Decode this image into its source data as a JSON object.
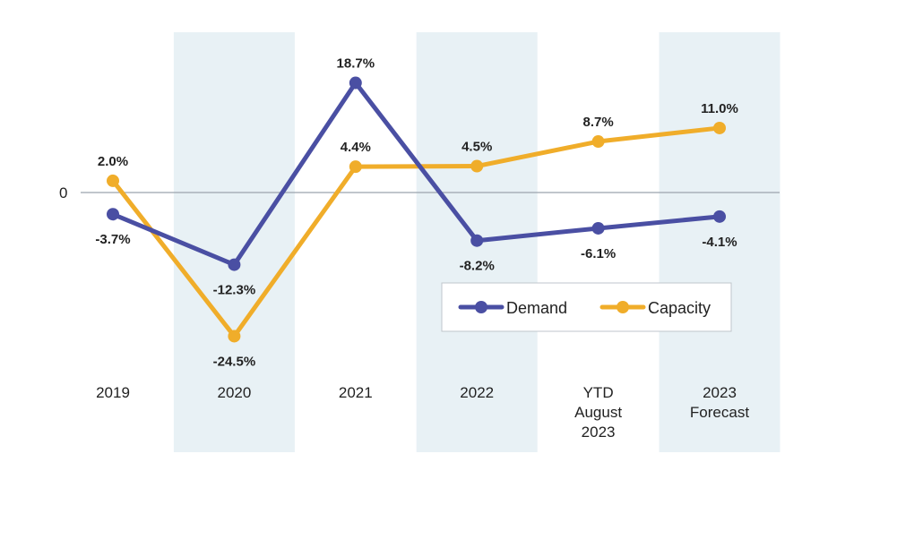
{
  "chart_data": {
    "type": "line",
    "categories": [
      "2019",
      "2020",
      "2021",
      "2022",
      "YTD August 2023",
      "2023 Forecast"
    ],
    "category_lines": [
      [
        "2019"
      ],
      [
        "2020"
      ],
      [
        "2021"
      ],
      [
        "2022"
      ],
      [
        "YTD",
        "August",
        "2023"
      ],
      [
        "2023",
        "Forecast"
      ]
    ],
    "shaded_categories": [
      "2020",
      "2022",
      "2023 Forecast"
    ],
    "zero_label": "0",
    "y_unit": "%",
    "series": [
      {
        "name": "Demand",
        "color": "#4a4fa3",
        "values": [
          -3.7,
          -12.3,
          18.7,
          -8.2,
          -6.1,
          -4.1
        ],
        "labels": [
          "-3.7%",
          "-12.3%",
          "18.7%",
          "-8.2%",
          "-6.1%",
          "-4.1%"
        ],
        "label_positions": [
          "below",
          "below",
          "above",
          "below",
          "below",
          "below"
        ]
      },
      {
        "name": "Capacity",
        "color": "#f0ad2a",
        "values": [
          2.0,
          -24.5,
          4.4,
          4.5,
          8.7,
          11.0
        ],
        "labels": [
          "2.0%",
          "-24.5%",
          "4.4%",
          "4.5%",
          "8.7%",
          "11.0%"
        ],
        "label_positions": [
          "above",
          "below",
          "above",
          "above",
          "above",
          "above"
        ]
      }
    ],
    "title": "",
    "xlabel": "",
    "ylabel": "",
    "ylim": [
      -34,
      32
    ],
    "grid": false,
    "legend": "bottom-right",
    "band_color": "#e8f1f5"
  }
}
